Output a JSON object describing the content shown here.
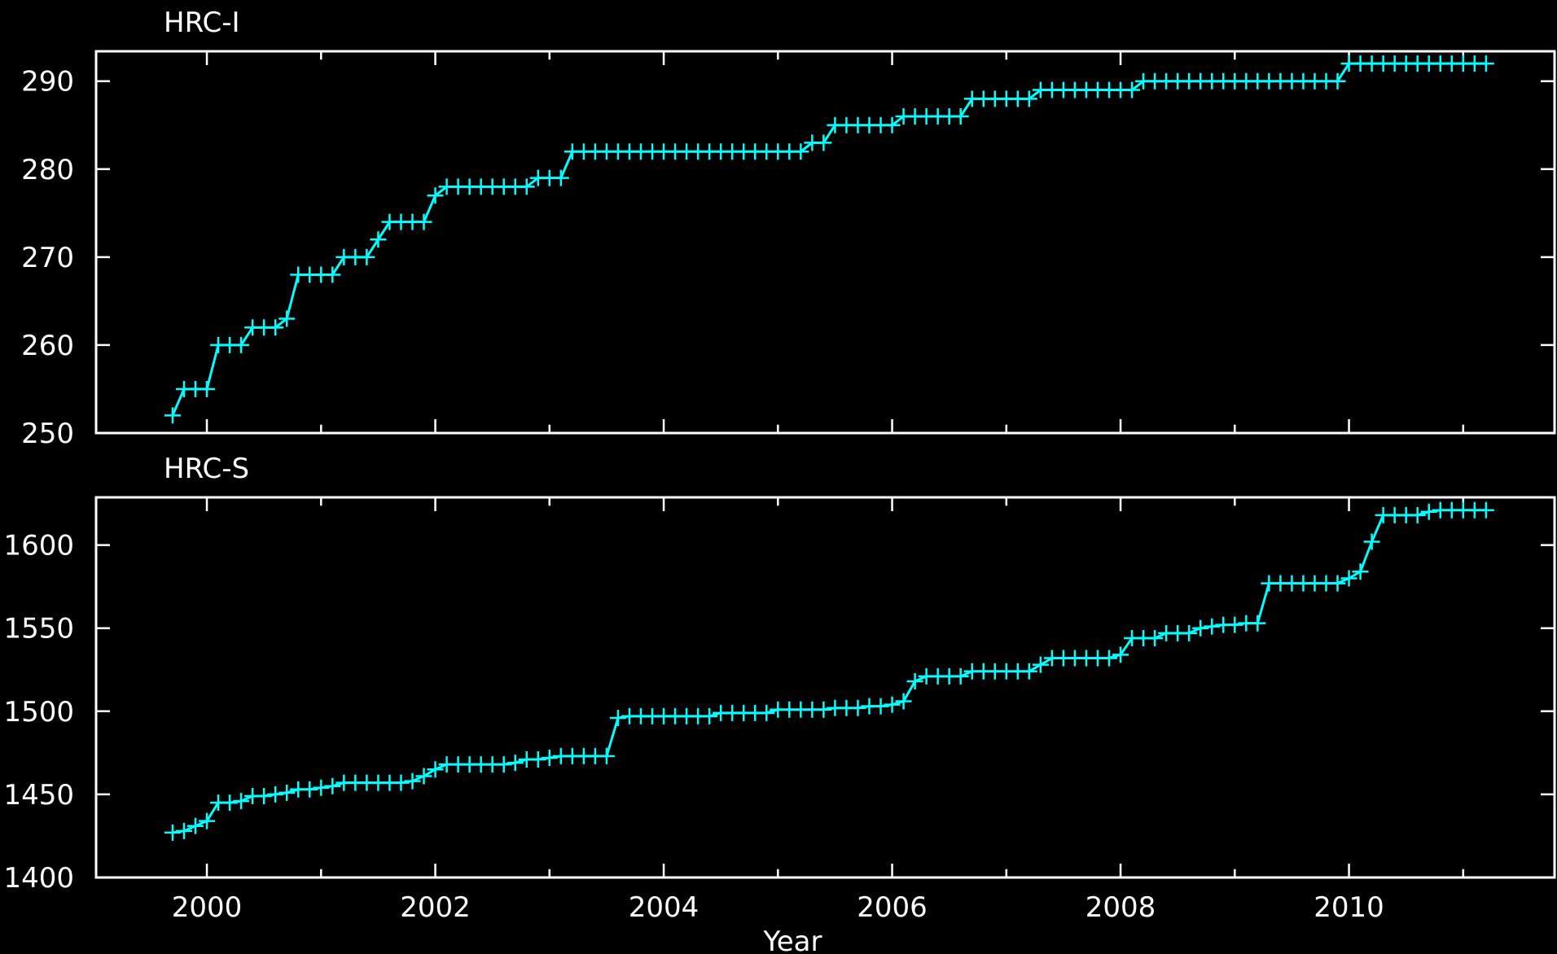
{
  "chart_data": [
    {
      "type": "line",
      "title": "HRC-I",
      "x": [
        1999.7,
        1999.8,
        1999.9,
        2000.0,
        2000.1,
        2000.2,
        2000.3,
        2000.4,
        2000.5,
        2000.6,
        2000.7,
        2000.8,
        2000.9,
        2001.0,
        2001.1,
        2001.2,
        2001.3,
        2001.4,
        2001.5,
        2001.6,
        2001.7,
        2001.8,
        2001.9,
        2002.0,
        2002.1,
        2002.2,
        2002.3,
        2002.4,
        2002.5,
        2002.6,
        2002.7,
        2002.8,
        2002.9,
        2003.0,
        2003.1,
        2003.2,
        2003.3,
        2003.4,
        2003.5,
        2003.6,
        2003.7,
        2003.8,
        2003.9,
        2004.0,
        2004.1,
        2004.2,
        2004.3,
        2004.4,
        2004.5,
        2004.6,
        2004.7,
        2004.8,
        2004.9,
        2005.0,
        2005.1,
        2005.2,
        2005.3,
        2005.4,
        2005.5,
        2005.6,
        2005.7,
        2005.8,
        2005.9,
        2006.0,
        2006.1,
        2006.2,
        2006.3,
        2006.4,
        2006.5,
        2006.6,
        2006.7,
        2006.8,
        2006.9,
        2007.0,
        2007.1,
        2007.2,
        2007.3,
        2007.4,
        2007.5,
        2007.6,
        2007.7,
        2007.8,
        2007.9,
        2008.0,
        2008.1,
        2008.2,
        2008.3,
        2008.4,
        2008.5,
        2008.6,
        2008.7,
        2008.8,
        2008.9,
        2009.0,
        2009.1,
        2009.2,
        2009.3,
        2009.4,
        2009.5,
        2009.6,
        2009.7,
        2009.8,
        2009.9,
        2010.0,
        2010.1,
        2010.2,
        2010.3,
        2010.4,
        2010.5,
        2010.6,
        2010.7,
        2010.8,
        2010.9,
        2011.0,
        2011.1,
        2011.2
      ],
      "series": [
        {
          "color": "#00ffff",
          "values": [
            252,
            255,
            255,
            255,
            260,
            260,
            260,
            262,
            262,
            262,
            263,
            268,
            268,
            268,
            268,
            270,
            270,
            270,
            272,
            274,
            274,
            274,
            274,
            277,
            278,
            278,
            278,
            278,
            278,
            278,
            278,
            278,
            279,
            279,
            279,
            282,
            282,
            282,
            282,
            282,
            282,
            282,
            282,
            282,
            282,
            282,
            282,
            282,
            282,
            282,
            282,
            282,
            282,
            282,
            282,
            282,
            283,
            283,
            285,
            285,
            285,
            285,
            285,
            285,
            286,
            286,
            286,
            286,
            286,
            286,
            288,
            288,
            288,
            288,
            288,
            288,
            289,
            289,
            289,
            289,
            289,
            289,
            289,
            289,
            289,
            290,
            290,
            290,
            290,
            290,
            290,
            290,
            290,
            290,
            290,
            290,
            290,
            290,
            290,
            290,
            290,
            290,
            290,
            292,
            292,
            292,
            292,
            292,
            292,
            292,
            292,
            292,
            292,
            292,
            292,
            292
          ]
        }
      ],
      "xlim": [
        1999.03,
        2011.8
      ],
      "xticks": [
        2000,
        2002,
        2004,
        2006,
        2008,
        2010
      ],
      "xminorticks": [
        2001,
        2003,
        2005,
        2007,
        2009,
        2011
      ],
      "show_xtick_labels": false,
      "ylim": [
        250,
        293.4
      ],
      "yticks": [
        250,
        260,
        270,
        280,
        290
      ]
    },
    {
      "type": "line",
      "title": "HRC-S",
      "xlabel": "Year",
      "x": [
        1999.7,
        1999.8,
        1999.9,
        2000.0,
        2000.1,
        2000.2,
        2000.3,
        2000.4,
        2000.5,
        2000.6,
        2000.7,
        2000.8,
        2000.9,
        2001.0,
        2001.1,
        2001.2,
        2001.3,
        2001.4,
        2001.5,
        2001.6,
        2001.7,
        2001.8,
        2001.9,
        2002.0,
        2002.1,
        2002.2,
        2002.3,
        2002.4,
        2002.5,
        2002.6,
        2002.7,
        2002.8,
        2002.9,
        2003.0,
        2003.1,
        2003.2,
        2003.3,
        2003.4,
        2003.5,
        2003.6,
        2003.7,
        2003.8,
        2003.9,
        2004.0,
        2004.1,
        2004.2,
        2004.3,
        2004.4,
        2004.5,
        2004.6,
        2004.7,
        2004.8,
        2004.9,
        2005.0,
        2005.1,
        2005.2,
        2005.3,
        2005.4,
        2005.5,
        2005.6,
        2005.7,
        2005.8,
        2005.9,
        2006.0,
        2006.1,
        2006.2,
        2006.3,
        2006.4,
        2006.5,
        2006.6,
        2006.7,
        2006.8,
        2006.9,
        2007.0,
        2007.1,
        2007.2,
        2007.3,
        2007.4,
        2007.5,
        2007.6,
        2007.7,
        2007.8,
        2007.9,
        2008.0,
        2008.1,
        2008.2,
        2008.3,
        2008.4,
        2008.5,
        2008.6,
        2008.7,
        2008.8,
        2008.9,
        2009.0,
        2009.1,
        2009.2,
        2009.3,
        2009.4,
        2009.5,
        2009.6,
        2009.7,
        2009.8,
        2009.9,
        2010.0,
        2010.1,
        2010.2,
        2010.3,
        2010.4,
        2010.5,
        2010.6,
        2010.7,
        2010.8,
        2010.9,
        2011.0,
        2011.1,
        2011.2
      ],
      "series": [
        {
          "color": "#00ffff",
          "values": [
            1427,
            1428,
            1431,
            1434,
            1445,
            1445,
            1446,
            1449,
            1449,
            1450,
            1451,
            1453,
            1453,
            1454,
            1455,
            1457,
            1457,
            1457,
            1457,
            1457,
            1457,
            1458,
            1461,
            1465,
            1468,
            1468,
            1468,
            1468,
            1468,
            1468,
            1469,
            1471,
            1471,
            1472,
            1473,
            1473,
            1473,
            1473,
            1473,
            1496,
            1497,
            1497,
            1497,
            1497,
            1497,
            1497,
            1497,
            1497,
            1499,
            1499,
            1499,
            1499,
            1499,
            1501,
            1501,
            1501,
            1501,
            1501,
            1502,
            1502,
            1502,
            1503,
            1503,
            1504,
            1506,
            1518,
            1521,
            1521,
            1521,
            1521,
            1524,
            1524,
            1524,
            1524,
            1524,
            1524,
            1528,
            1532,
            1532,
            1532,
            1532,
            1532,
            1532,
            1534,
            1544,
            1544,
            1544,
            1547,
            1547,
            1547,
            1550,
            1551,
            1552,
            1552,
            1553,
            1553,
            1577,
            1577,
            1577,
            1577,
            1577,
            1577,
            1577,
            1580,
            1584,
            1602,
            1618,
            1618,
            1618,
            1618,
            1620,
            1621,
            1621,
            1621,
            1621,
            1621
          ]
        }
      ],
      "xlim": [
        1999.03,
        2011.8
      ],
      "xticks": [
        2000,
        2002,
        2004,
        2006,
        2008,
        2010
      ],
      "xminorticks": [
        2001,
        2003,
        2005,
        2007,
        2009,
        2011
      ],
      "show_xtick_labels": true,
      "ylim": [
        1400,
        1628.7
      ],
      "yticks": [
        1400,
        1450,
        1500,
        1550,
        1600
      ]
    }
  ]
}
